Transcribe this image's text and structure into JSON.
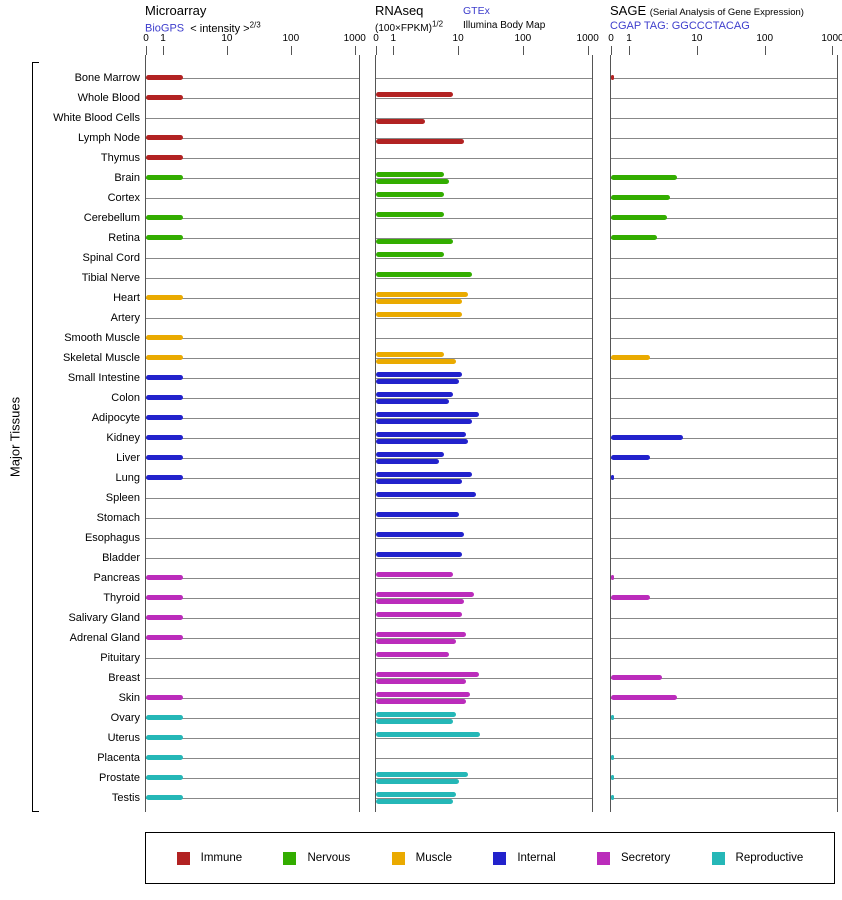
{
  "y_axis_label": "Major Tissues",
  "axis_ticks": [
    "0",
    "1",
    "10",
    "100",
    "1000"
  ],
  "header": {
    "microarray": {
      "title": "Microarray",
      "link": "BioGPS",
      "formula": "< intensity >",
      "exponent": "2/3"
    },
    "rnaseq": {
      "title": "RNAseq",
      "link": "GTEx",
      "formula": "(100×FPKM)",
      "exponent": "1/2",
      "sublink": "Illumina Body Map"
    },
    "sage": {
      "title": "SAGE",
      "note": "(Serial Analysis of Gene Expression)",
      "link": "CGAP",
      "tag": "TAG: GGCCCTACAG"
    }
  },
  "legend": [
    {
      "label": "Immune",
      "color": "#b22222"
    },
    {
      "label": "Nervous",
      "color": "#33ad00"
    },
    {
      "label": "Muscle",
      "color": "#eaaa00"
    },
    {
      "label": "Internal",
      "color": "#2222cc"
    },
    {
      "label": "Secretory",
      "color": "#bb2cbb"
    },
    {
      "label": "Reproductive",
      "color": "#25b7b7"
    }
  ],
  "chart_data": {
    "type": "bar",
    "orientation": "horizontal",
    "x_scale": "log",
    "x_ticks": [
      0,
      1,
      10,
      100,
      1000
    ],
    "panels": [
      "Microarray (BioGPS)",
      "RNAseq (GTEx / Illumina Body Map)",
      "SAGE (CGAP TAG: GGCCCTACAG)"
    ],
    "categories": {
      "Immune": "#b22222",
      "Nervous": "#33ad00",
      "Muscle": "#eaaa00",
      "Internal": "#2222cc",
      "Secretory": "#bb2cbb",
      "Reproductive": "#25b7b7"
    },
    "tissues": [
      {
        "name": "Bone Marrow",
        "category": "Immune",
        "microarray": 2,
        "rnaseq_gtex": null,
        "rnaseq_illumina": null,
        "sage": 0.2
      },
      {
        "name": "Whole Blood",
        "category": "Immune",
        "microarray": 2,
        "rnaseq_gtex": 8,
        "rnaseq_illumina": null,
        "sage": null
      },
      {
        "name": "White Blood Cells",
        "category": "Immune",
        "microarray": null,
        "rnaseq_gtex": null,
        "rnaseq_illumina": 3,
        "sage": null
      },
      {
        "name": "Lymph Node",
        "category": "Immune",
        "microarray": 2,
        "rnaseq_gtex": null,
        "rnaseq_illumina": 12,
        "sage": null
      },
      {
        "name": "Thymus",
        "category": "Immune",
        "microarray": 2,
        "rnaseq_gtex": null,
        "rnaseq_illumina": null,
        "sage": null
      },
      {
        "name": "Brain",
        "category": "Nervous",
        "microarray": 2,
        "rnaseq_gtex": 6,
        "rnaseq_illumina": 7,
        "sage": 5
      },
      {
        "name": "Cortex",
        "category": "Nervous",
        "microarray": null,
        "rnaseq_gtex": 6,
        "rnaseq_illumina": null,
        "sage": 4
      },
      {
        "name": "Cerebellum",
        "category": "Nervous",
        "microarray": 2,
        "rnaseq_gtex": 6,
        "rnaseq_illumina": null,
        "sage": 3.5
      },
      {
        "name": "Retina",
        "category": "Nervous",
        "microarray": 2,
        "rnaseq_gtex": null,
        "rnaseq_illumina": 8,
        "sage": 2.5
      },
      {
        "name": "Spinal Cord",
        "category": "Nervous",
        "microarray": null,
        "rnaseq_gtex": 6,
        "rnaseq_illumina": null,
        "sage": null
      },
      {
        "name": "Tibial Nerve",
        "category": "Nervous",
        "microarray": null,
        "rnaseq_gtex": 16,
        "rnaseq_illumina": null,
        "sage": null
      },
      {
        "name": "Heart",
        "category": "Muscle",
        "microarray": 2,
        "rnaseq_gtex": 14,
        "rnaseq_illumina": 11,
        "sage": null
      },
      {
        "name": "Artery",
        "category": "Muscle",
        "microarray": null,
        "rnaseq_gtex": 11,
        "rnaseq_illumina": null,
        "sage": null
      },
      {
        "name": "Smooth Muscle",
        "category": "Muscle",
        "microarray": 2,
        "rnaseq_gtex": null,
        "rnaseq_illumina": null,
        "sage": null
      },
      {
        "name": "Skeletal Muscle",
        "category": "Muscle",
        "microarray": 2,
        "rnaseq_gtex": 6,
        "rnaseq_illumina": 9,
        "sage": 2
      },
      {
        "name": "Small Intestine",
        "category": "Internal",
        "microarray": 2,
        "rnaseq_gtex": 11,
        "rnaseq_illumina": 10,
        "sage": null
      },
      {
        "name": "Colon",
        "category": "Internal",
        "microarray": 2,
        "rnaseq_gtex": 8,
        "rnaseq_illumina": 7,
        "sage": null
      },
      {
        "name": "Adipocyte",
        "category": "Internal",
        "microarray": 2,
        "rnaseq_gtex": 20,
        "rnaseq_illumina": 16,
        "sage": null
      },
      {
        "name": "Kidney",
        "category": "Internal",
        "microarray": 2,
        "rnaseq_gtex": 13,
        "rnaseq_illumina": 14,
        "sage": 6
      },
      {
        "name": "Liver",
        "category": "Internal",
        "microarray": 2,
        "rnaseq_gtex": 6,
        "rnaseq_illumina": 5,
        "sage": 2
      },
      {
        "name": "Lung",
        "category": "Internal",
        "microarray": 2,
        "rnaseq_gtex": 16,
        "rnaseq_illumina": 11,
        "sage": 0.2
      },
      {
        "name": "Spleen",
        "category": "Internal",
        "microarray": null,
        "rnaseq_gtex": 18,
        "rnaseq_illumina": null,
        "sage": null
      },
      {
        "name": "Stomach",
        "category": "Internal",
        "microarray": null,
        "rnaseq_gtex": 10,
        "rnaseq_illumina": null,
        "sage": null
      },
      {
        "name": "Esophagus",
        "category": "Internal",
        "microarray": null,
        "rnaseq_gtex": 12,
        "rnaseq_illumina": null,
        "sage": null
      },
      {
        "name": "Bladder",
        "category": "Internal",
        "microarray": null,
        "rnaseq_gtex": 11,
        "rnaseq_illumina": null,
        "sage": null
      },
      {
        "name": "Pancreas",
        "category": "Secretory",
        "microarray": 2,
        "rnaseq_gtex": 8,
        "rnaseq_illumina": null,
        "sage": 0.2
      },
      {
        "name": "Thyroid",
        "category": "Secretory",
        "microarray": 2,
        "rnaseq_gtex": 17,
        "rnaseq_illumina": 12,
        "sage": 2
      },
      {
        "name": "Salivary Gland",
        "category": "Secretory",
        "microarray": 2,
        "rnaseq_gtex": 11,
        "rnaseq_illumina": null,
        "sage": null
      },
      {
        "name": "Adrenal Gland",
        "category": "Secretory",
        "microarray": 2,
        "rnaseq_gtex": 13,
        "rnaseq_illumina": 9,
        "sage": null
      },
      {
        "name": "Pituitary",
        "category": "Secretory",
        "microarray": null,
        "rnaseq_gtex": 7,
        "rnaseq_illumina": null,
        "sage": null
      },
      {
        "name": "Breast",
        "category": "Secretory",
        "microarray": null,
        "rnaseq_gtex": 20,
        "rnaseq_illumina": 13,
        "sage": 3
      },
      {
        "name": "Skin",
        "category": "Secretory",
        "microarray": 2,
        "rnaseq_gtex": 15,
        "rnaseq_illumina": 13,
        "sage": 5
      },
      {
        "name": "Ovary",
        "category": "Reproductive",
        "microarray": 2,
        "rnaseq_gtex": 9,
        "rnaseq_illumina": 8,
        "sage": 0.2
      },
      {
        "name": "Uterus",
        "category": "Reproductive",
        "microarray": 2,
        "rnaseq_gtex": 21,
        "rnaseq_illumina": null,
        "sage": null
      },
      {
        "name": "Placenta",
        "category": "Reproductive",
        "microarray": 2,
        "rnaseq_gtex": null,
        "rnaseq_illumina": null,
        "sage": 0.2
      },
      {
        "name": "Prostate",
        "category": "Reproductive",
        "microarray": 2,
        "rnaseq_gtex": 14,
        "rnaseq_illumina": 10,
        "sage": 0.2
      },
      {
        "name": "Testis",
        "category": "Reproductive",
        "microarray": 2,
        "rnaseq_gtex": 9,
        "rnaseq_illumina": 8,
        "sage": 0.2
      }
    ]
  }
}
